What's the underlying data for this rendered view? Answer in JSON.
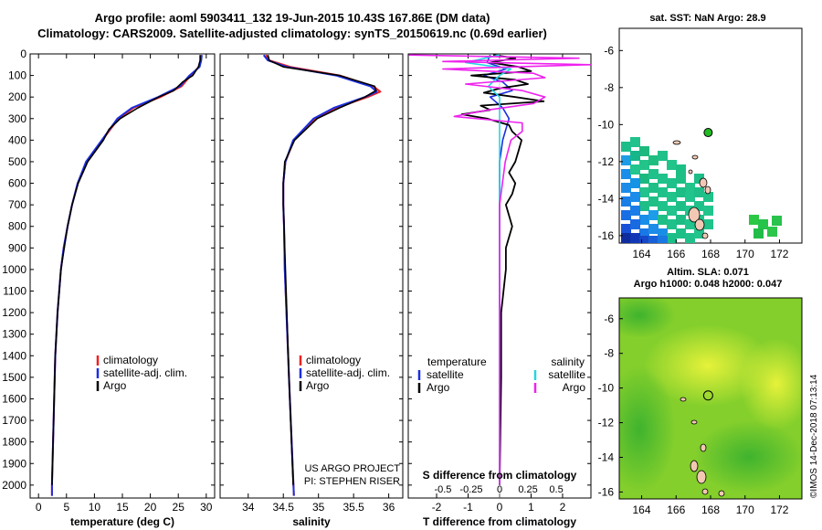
{
  "header": {
    "line1": "Argo profile: aoml 5903411_132 19-Jun-2015 10.43S 167.86E (DM data)",
    "line2": "Climatology: CARS2009. Satellite-adjusted climatology: synTS_20150619.nc (0.69d earlier)"
  },
  "right_panels": {
    "sst_title": "sat. SST: NaN Argo: 28.9",
    "sla_title1": "Altim. SLA: 0.071",
    "sla_title2": "Argo h1000: 0.048 h2000: 0.047",
    "credit": "©IMOS 14-Dec-2018 07:13:14"
  },
  "colors": {
    "climatology": "#ee2020",
    "satellite": "#1a2ee0",
    "argo": "#000000",
    "sal_satellite": "#22d6e6",
    "sal_argo": "#ee22ee",
    "profile_marker": "#22bb22"
  },
  "chart_data": [
    {
      "type": "line",
      "title": "",
      "xlabel": "temperature (deg C)",
      "ylabel": "",
      "xlim": [
        -1.5,
        31.5
      ],
      "ylim": [
        0,
        2060
      ],
      "xticks": [
        0,
        5,
        10,
        15,
        20,
        25,
        30
      ],
      "yticks": [
        0,
        100,
        200,
        300,
        400,
        500,
        600,
        700,
        800,
        900,
        1000,
        1100,
        1200,
        1300,
        1400,
        1500,
        1600,
        1700,
        1800,
        1900,
        2000
      ],
      "legend": [
        "climatology",
        "satellite-adj. clim.",
        "Argo"
      ],
      "series": [
        {
          "name": "climatology",
          "depth": [
            5,
            30,
            60,
            100,
            150,
            200,
            250,
            300,
            400,
            500,
            600,
            700,
            800,
            900,
            1000,
            1200,
            1400,
            1600,
            1800,
            2000,
            2050
          ],
          "values": [
            29.0,
            29.0,
            28.7,
            27.2,
            25.6,
            21.8,
            17.0,
            14.3,
            11.4,
            8.6,
            7.0,
            6.0,
            5.2,
            4.5,
            4.0,
            3.4,
            3.0,
            2.8,
            2.6,
            2.4,
            2.4
          ]
        },
        {
          "name": "satellite-adj. clim.",
          "depth": [
            5,
            30,
            60,
            100,
            150,
            200,
            250,
            300,
            400,
            500,
            600,
            700,
            800,
            900,
            1000,
            1200,
            1400,
            1600,
            1800,
            2000,
            2050
          ],
          "values": [
            29.2,
            29.1,
            28.8,
            27.0,
            25.3,
            21.4,
            16.7,
            14.1,
            11.3,
            8.5,
            7.0,
            6.0,
            5.2,
            4.5,
            4.0,
            3.4,
            3.0,
            2.8,
            2.6,
            2.4,
            2.4
          ]
        },
        {
          "name": "Argo",
          "depth": [
            5,
            30,
            60,
            100,
            130,
            170,
            200,
            250,
            300,
            350,
            400,
            500,
            600,
            700,
            800,
            1000,
            1200,
            1400,
            1600,
            1800,
            2000
          ],
          "values": [
            28.9,
            28.9,
            28.6,
            27.6,
            25.8,
            24.2,
            21.5,
            17.8,
            14.6,
            12.6,
            11.6,
            8.8,
            7.1,
            6.0,
            5.2,
            4.0,
            3.4,
            3.0,
            2.8,
            2.6,
            2.4
          ]
        }
      ]
    },
    {
      "type": "line",
      "xlabel": "salinity",
      "xlim": [
        33.6,
        36.2
      ],
      "ylim": [
        0,
        2060
      ],
      "xticks": [
        34,
        34.5,
        35,
        35.5,
        36
      ],
      "xticklabels": [
        "34",
        "34.5",
        "35",
        "35.5",
        "36"
      ],
      "legend": [
        "climatology",
        "satellite-adj. clim.",
        "Argo"
      ],
      "footer1": "US ARGO PROJECT",
      "footer2": "PI: STEPHEN RISER",
      "series": [
        {
          "name": "climatology",
          "depth": [
            5,
            30,
            60,
            100,
            150,
            175,
            200,
            250,
            300,
            400,
            500,
            600,
            700,
            800,
            1000,
            1500,
            2050
          ],
          "values": [
            34.25,
            34.3,
            34.6,
            35.3,
            35.78,
            35.88,
            35.7,
            35.25,
            34.95,
            34.65,
            34.53,
            34.5,
            34.5,
            34.51,
            34.52,
            34.58,
            34.65
          ]
        },
        {
          "name": "satellite-adj. clim.",
          "depth": [
            5,
            30,
            60,
            100,
            150,
            175,
            200,
            250,
            300,
            400,
            500,
            600,
            700,
            800,
            1000,
            1500,
            2050
          ],
          "values": [
            34.22,
            34.28,
            34.55,
            35.25,
            35.74,
            35.83,
            35.66,
            35.22,
            34.93,
            34.64,
            34.53,
            34.5,
            34.5,
            34.51,
            34.52,
            34.58,
            34.65
          ]
        },
        {
          "name": "Argo",
          "depth": [
            5,
            30,
            60,
            100,
            150,
            170,
            200,
            250,
            300,
            400,
            500,
            600,
            700,
            800,
            1000,
            1500,
            2000
          ],
          "values": [
            34.28,
            34.3,
            34.5,
            35.3,
            35.8,
            35.82,
            35.66,
            35.3,
            34.98,
            34.66,
            34.52,
            34.5,
            34.5,
            34.51,
            34.53,
            34.58,
            34.64
          ]
        }
      ]
    },
    {
      "type": "line",
      "xlabel": "T difference from climatology",
      "xlabel_top": "S difference from climatology",
      "xlim": [
        -2.9,
        2.9
      ],
      "ylim": [
        0,
        2060
      ],
      "xticks": [
        -2,
        -1,
        0,
        1,
        2
      ],
      "s_xticks": [
        -0.5,
        -0.25,
        0,
        0.25,
        0.5
      ],
      "s_xticklabels": [
        "-0.5",
        "-0.25",
        "0",
        "0.25",
        "0.5"
      ],
      "legend_left_header": "temperature",
      "legend_right_header": "salinity",
      "legend": [
        "satellite",
        "Argo",
        "satellite",
        "Argo"
      ],
      "series": [
        {
          "name": "T satellite",
          "depth": [
            5,
            40,
            70,
            100,
            130,
            170,
            200,
            250,
            300,
            400,
            500,
            700,
            1000,
            1500,
            2000
          ],
          "values": [
            -0.3,
            -0.4,
            0.2,
            -0.5,
            0.1,
            0.4,
            -0.3,
            0.1,
            0.3,
            0.1,
            0.0,
            0.0,
            0.0,
            0.0,
            0.0
          ]
        },
        {
          "name": "T Argo",
          "depth": [
            5,
            20,
            40,
            60,
            80,
            100,
            120,
            140,
            160,
            180,
            200,
            220,
            240,
            260,
            280,
            300,
            330,
            360,
            400,
            450,
            500,
            550,
            600,
            650,
            700,
            800,
            900,
            1000,
            1200,
            1500,
            2000
          ],
          "values": [
            -0.2,
            0.5,
            -0.3,
            0.6,
            1.0,
            -0.9,
            0.5,
            0.9,
            0.0,
            -0.5,
            0.5,
            1.4,
            -0.6,
            -0.3,
            -1.2,
            -0.4,
            0.3,
            0.4,
            0.7,
            0.6,
            0.5,
            0.3,
            0.5,
            0.4,
            0.2,
            0.4,
            0.2,
            0.2,
            0.05,
            0.05,
            0.0
          ]
        },
        {
          "name": "S satellite",
          "depth": [
            5,
            40,
            70,
            100,
            150,
            200,
            300,
            500,
            1000,
            2000
          ],
          "values": [
            0.0,
            -0.3,
            0.1,
            0.0,
            -0.1,
            0.0,
            0.0,
            0.0,
            0.0,
            0.0
          ]
        },
        {
          "name": "S Argo",
          "depth": [
            5,
            20,
            35,
            50,
            70,
            90,
            110,
            140,
            170,
            200,
            230,
            260,
            290,
            320,
            360,
            400,
            500,
            700,
            1000,
            2000
          ],
          "values": [
            -0.8,
            0.7,
            -0.5,
            0.8,
            -0.5,
            0.3,
            0.4,
            -0.3,
            0.2,
            0.4,
            0.3,
            -0.1,
            -0.4,
            0.2,
            0.2,
            0.1,
            0.05,
            0.0,
            0.0,
            0.0
          ]
        }
      ]
    },
    {
      "type": "heatmap",
      "title": "sat. SST: NaN Argo: 28.9",
      "xticks": [
        164,
        166,
        168,
        170,
        172
      ],
      "yticks": [
        -6,
        -8,
        -10,
        -12,
        -14,
        -16
      ],
      "xlim": [
        162.7,
        173.3
      ],
      "ylim": [
        -16.4,
        -4.8
      ],
      "profile_lon": 167.86,
      "profile_lat": -10.43
    },
    {
      "type": "heatmap",
      "title": "Altim. SLA: 0.071",
      "xticks": [
        164,
        166,
        168,
        170,
        172
      ],
      "yticks": [
        -6,
        -8,
        -10,
        -12,
        -14,
        -16
      ],
      "xlim": [
        162.7,
        173.3
      ],
      "ylim": [
        -16.4,
        -4.8
      ],
      "profile_lon": 167.86,
      "profile_lat": -10.43
    }
  ]
}
